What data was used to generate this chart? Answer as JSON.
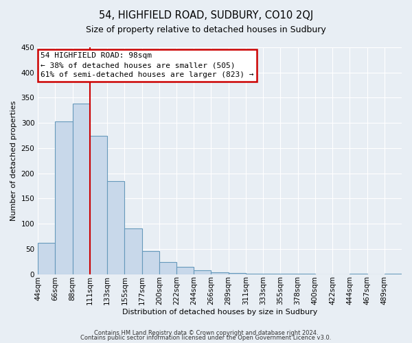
{
  "title": "54, HIGHFIELD ROAD, SUDBURY, CO10 2QJ",
  "subtitle": "Size of property relative to detached houses in Sudbury",
  "xlabel": "Distribution of detached houses by size in Sudbury",
  "ylabel": "Number of detached properties",
  "bar_labels": [
    "44sqm",
    "66sqm",
    "88sqm",
    "111sqm",
    "133sqm",
    "155sqm",
    "177sqm",
    "200sqm",
    "222sqm",
    "244sqm",
    "266sqm",
    "289sqm",
    "311sqm",
    "333sqm",
    "355sqm",
    "378sqm",
    "400sqm",
    "422sqm",
    "444sqm",
    "467sqm",
    "489sqm"
  ],
  "bar_heights": [
    62,
    303,
    338,
    275,
    184,
    90,
    45,
    24,
    15,
    8,
    4,
    2,
    1,
    1,
    1,
    1,
    0,
    0,
    1,
    0,
    1
  ],
  "bar_color": "#c8d8ea",
  "bar_edge_color": "#6699bb",
  "red_line_index": 3,
  "annotation_title": "54 HIGHFIELD ROAD: 98sqm",
  "annotation_line1": "← 38% of detached houses are smaller (505)",
  "annotation_line2": "61% of semi-detached houses are larger (823) →",
  "annotation_box_facecolor": "#ffffff",
  "annotation_box_edgecolor": "#cc0000",
  "ylim": [
    0,
    450
  ],
  "yticks": [
    0,
    50,
    100,
    150,
    200,
    250,
    300,
    350,
    400,
    450
  ],
  "footnote1": "Contains HM Land Registry data © Crown copyright and database right 2024.",
  "footnote2": "Contains public sector information licensed under the Open Government Licence v3.0.",
  "background_color": "#e8eef4",
  "grid_color": "#ffffff",
  "title_fontsize": 10.5,
  "subtitle_fontsize": 9,
  "axis_label_fontsize": 8,
  "tick_fontsize": 7.5,
  "annotation_fontsize": 8,
  "footnote_fontsize": 6
}
